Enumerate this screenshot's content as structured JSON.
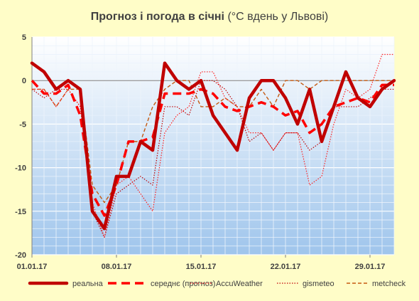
{
  "chart_data": {
    "type": "line",
    "title": {
      "main": "Прогноз і погода в січні",
      "sub": "(°С вдень у Львові)"
    },
    "xlabel": "",
    "ylabel": "",
    "ylim": [
      -20,
      5
    ],
    "yticks": [
      5,
      0,
      -5,
      -10,
      -15,
      -20
    ],
    "x": [
      "01.01.17",
      "02.01.17",
      "03.01.17",
      "04.01.17",
      "05.01.17",
      "06.01.17",
      "07.01.17",
      "08.01.17",
      "09.01.17",
      "10.01.17",
      "11.01.17",
      "12.01.17",
      "13.01.17",
      "14.01.17",
      "15.01.17",
      "16.01.17",
      "17.01.17",
      "18.01.17",
      "19.01.17",
      "20.01.17",
      "21.01.17",
      "22.01.17",
      "23.01.17",
      "24.01.17",
      "25.01.17",
      "26.01.17",
      "27.01.17",
      "28.01.17",
      "29.01.17",
      "30.01.17",
      "31.01.17"
    ],
    "xticks": [
      "01.01.17",
      "08.01.17",
      "15.01.17",
      "22.01.17",
      "29.01.17"
    ],
    "grid": true,
    "legend_position": "bottom",
    "series": [
      {
        "name": "реальна",
        "color": "#c00000",
        "style": "solid-thick",
        "values": [
          2,
          1,
          -1,
          0,
          -1,
          -15,
          -17,
          -11,
          -11,
          -7,
          -8,
          2,
          0,
          -1,
          0,
          -4,
          -6,
          -8,
          -2,
          0,
          0,
          -2,
          -5,
          -1,
          -7,
          -3,
          1,
          -2,
          -3,
          -1,
          0
        ]
      },
      {
        "name": "середнє (прогноз)",
        "color": "#ff0000",
        "style": "dashed-thick",
        "values": [
          0,
          -1.5,
          -1.5,
          -0.5,
          -4,
          -13,
          -15.5,
          -12,
          -7,
          -7,
          -6.5,
          -1.5,
          -1.5,
          -1.5,
          -1,
          -1.5,
          -3,
          -3.5,
          -3,
          -2.5,
          -3,
          -4,
          -3.5,
          -6,
          -5,
          -3,
          -2.5,
          -2,
          -2.5,
          -0.5,
          -0.5
        ]
      },
      {
        "name": "AccuWeather",
        "color": "#ff2020",
        "style": "dotted-thin",
        "values": [
          -1,
          -1,
          -3,
          -1,
          -3,
          -14,
          -18,
          -12,
          -11,
          -13,
          -15,
          -6,
          -4,
          -3,
          1,
          1,
          -2,
          -3,
          -6,
          -6,
          -8,
          -6,
          -6,
          -12,
          -11,
          -5,
          -1,
          -2,
          -1,
          3,
          3
        ]
      },
      {
        "name": "gismeteo",
        "color": "#c00000",
        "style": "dotted-thin",
        "values": [
          -1,
          -2,
          -1,
          -1,
          -3,
          -15,
          -18,
          -13,
          -12,
          -11,
          -12,
          -3,
          -3,
          -4,
          0,
          0,
          -1,
          -3,
          -7,
          -6,
          -8,
          -6,
          -6,
          -8,
          -7,
          -3,
          -3,
          -3,
          -2,
          -1,
          -1
        ]
      },
      {
        "name": "metcheck",
        "color": "#c55a11",
        "style": "dashed-thin",
        "values": [
          -1,
          -1,
          -3,
          -1,
          -1,
          -12,
          -14,
          -12,
          -7,
          -7,
          -3,
          -1,
          0,
          0,
          -3,
          -3,
          -2,
          -3,
          -3,
          -1,
          -3,
          0,
          0,
          -1,
          0,
          0,
          0,
          0,
          0,
          0,
          0
        ]
      }
    ]
  }
}
